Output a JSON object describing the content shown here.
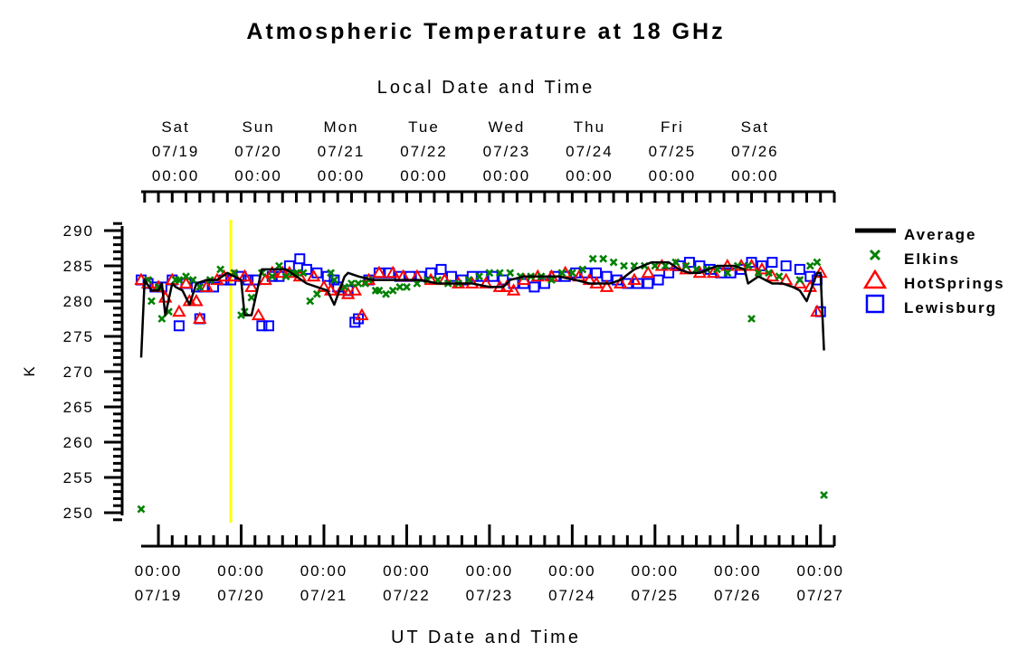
{
  "chart_data": {
    "type": "scatter",
    "title": "Atmospheric Temperature at 18 GHz",
    "top_axis_label": "Local Date and Time",
    "xlabel": "UT Date and Time",
    "ylabel": "K",
    "ylim": [
      249,
      290
    ],
    "xlim": [
      "07/18 19:00",
      "07/27 04:00"
    ],
    "yticks": [
      "250",
      "255",
      "260",
      "265",
      "270",
      "275",
      "280",
      "285",
      "290"
    ],
    "top_ticks": [
      {
        "day": "Sat",
        "date": "07/19",
        "time": "00:00"
      },
      {
        "day": "Sun",
        "date": "07/20",
        "time": "00:00"
      },
      {
        "day": "Mon",
        "date": "07/21",
        "time": "00:00"
      },
      {
        "day": "Tue",
        "date": "07/22",
        "time": "00:00"
      },
      {
        "day": "Wed",
        "date": "07/23",
        "time": "00:00"
      },
      {
        "day": "Thu",
        "date": "07/24",
        "time": "00:00"
      },
      {
        "day": "Fri",
        "date": "07/25",
        "time": "00:00"
      },
      {
        "day": "Sat",
        "date": "07/26",
        "time": "00:00"
      }
    ],
    "bottom_ticks": [
      {
        "time": "00:00",
        "date": "07/19"
      },
      {
        "time": "00:00",
        "date": "07/20"
      },
      {
        "time": "00:00",
        "date": "07/21"
      },
      {
        "time": "00:00",
        "date": "07/22"
      },
      {
        "time": "00:00",
        "date": "07/23"
      },
      {
        "time": "00:00",
        "date": "07/24"
      },
      {
        "time": "00:00",
        "date": "07/25"
      },
      {
        "time": "00:00",
        "date": "07/26"
      },
      {
        "time": "00:00",
        "date": "07/27"
      }
    ],
    "marker_line": {
      "x": "07/19 21:00",
      "color": "#ffff00"
    },
    "legend_position": "right",
    "series": [
      {
        "name": "Average",
        "kind": "line",
        "color": "#000000",
        "x": [
          "07/18 19:00",
          "07/18 20:00",
          "07/18 22:00",
          "07/19 00:00",
          "07/19 01:00",
          "07/19 02:00",
          "07/19 04:00",
          "07/19 05:00",
          "07/19 07:00",
          "07/19 09:00",
          "07/19 11:00",
          "07/19 14:00",
          "07/19 17:00",
          "07/19 20:00",
          "07/19 22:00",
          "07/20 00:00",
          "07/20 01:00",
          "07/20 03:00",
          "07/20 06:00",
          "07/20 08:00",
          "07/20 10:00",
          "07/20 13:00",
          "07/20 16:00",
          "07/20 19:00",
          "07/20 22:00",
          "07/21 01:00",
          "07/21 03:00",
          "07/21 06:00",
          "07/21 07:00",
          "07/21 10:00",
          "07/21 14:00",
          "07/21 18:00",
          "07/21 23:00",
          "07/22 04:00",
          "07/22 09:00",
          "07/22 14:00",
          "07/22 19:00",
          "07/23 00:00",
          "07/23 04:00",
          "07/23 06:00",
          "07/23 10:00",
          "07/23 15:00",
          "07/23 20:00",
          "07/24 01:00",
          "07/24 05:00",
          "07/24 08:00",
          "07/24 11:00",
          "07/24 14:00",
          "07/24 18:00",
          "07/24 23:00",
          "07/25 04:00",
          "07/25 07:00",
          "07/25 10:00",
          "07/25 13:00",
          "07/25 18:00",
          "07/25 23:00",
          "07/26 02:00",
          "07/26 03:00",
          "07/26 06:00",
          "07/26 08:00",
          "07/26 10:00",
          "07/26 13:00",
          "07/26 16:00",
          "07/26 18:00",
          "07/26 20:00",
          "07/26 23:00",
          "07/27 00:00",
          "07/27 01:00"
        ],
        "y": [
          272,
          283,
          281.5,
          281.5,
          282.5,
          278,
          282.5,
          282,
          281.5,
          279.5,
          282.5,
          283,
          283,
          284,
          283.5,
          283,
          278,
          278,
          284.5,
          284.5,
          284.5,
          284.5,
          283.5,
          282.5,
          282,
          281.5,
          279.5,
          283.5,
          284,
          283.5,
          283,
          283,
          283,
          283,
          282.5,
          282.5,
          282.5,
          282,
          282,
          283,
          283.5,
          283.5,
          283.5,
          283,
          282.5,
          282.5,
          282.5,
          283,
          284.5,
          285.5,
          285.5,
          284.5,
          284,
          284,
          285,
          285,
          284.5,
          282.5,
          283.5,
          283,
          282.5,
          282.5,
          282,
          281.5,
          280,
          284,
          284,
          273
        ]
      },
      {
        "name": "Elkins",
        "kind": "x",
        "color": "#008000",
        "x": [
          "07/18 19:00",
          "07/18 21:00",
          "07/18 22:00",
          "07/19 00:00",
          "07/19 01:00",
          "07/19 03:00",
          "07/19 05:00",
          "07/19 06:00",
          "07/19 08:00",
          "07/19 10:00",
          "07/19 12:00",
          "07/19 15:00",
          "07/19 18:00",
          "07/19 22:00",
          "07/20 00:00",
          "07/20 01:00",
          "07/20 03:00",
          "07/20 06:00",
          "07/20 09:00",
          "07/20 11:00",
          "07/20 13:00",
          "07/20 15:00",
          "07/20 16:00",
          "07/20 18:00",
          "07/20 20:00",
          "07/20 22:00",
          "07/21 02:00",
          "07/21 03:00",
          "07/21 06:00",
          "07/21 08:00",
          "07/21 10:00",
          "07/21 12:00",
          "07/21 13:00",
          "07/21 15:00",
          "07/21 16:00",
          "07/21 18:00",
          "07/21 20:00",
          "07/21 22:00",
          "07/22 00:00",
          "07/22 03:00",
          "07/22 06:00",
          "07/22 09:00",
          "07/22 12:00",
          "07/22 15:00",
          "07/22 18:00",
          "07/22 21:00",
          "07/23 00:00",
          "07/23 03:00",
          "07/23 06:00",
          "07/23 09:00",
          "07/23 12:00",
          "07/23 15:00",
          "07/23 18:00",
          "07/23 21:00",
          "07/24 00:00",
          "07/24 03:00",
          "07/24 06:00",
          "07/24 09:00",
          "07/24 12:00",
          "07/24 15:00",
          "07/24 18:00",
          "07/24 21:00",
          "07/25 00:00",
          "07/25 03:00",
          "07/25 06:00",
          "07/25 09:00",
          "07/25 12:00",
          "07/25 15:00",
          "07/25 18:00",
          "07/25 21:00",
          "07/26 00:00",
          "07/26 03:00",
          "07/26 04:00",
          "07/26 06:00",
          "07/26 09:00",
          "07/26 12:00",
          "07/26 18:00",
          "07/26 21:00",
          "07/26 23:00",
          "07/27 01:00"
        ],
        "y": [
          250.5,
          283,
          280,
          282,
          277.5,
          278.5,
          283,
          283,
          283.5,
          283,
          282,
          283,
          284.5,
          284,
          278,
          278.5,
          280.5,
          284,
          283.5,
          285,
          283.5,
          284,
          284,
          284,
          280,
          281,
          284,
          283,
          282,
          282.5,
          282.5,
          282.5,
          283,
          281.5,
          281.5,
          281,
          281.5,
          282,
          282,
          282.5,
          283,
          283,
          282.5,
          282.5,
          283,
          283.5,
          284,
          284,
          284,
          283.5,
          283.5,
          283.5,
          283,
          284,
          284,
          284.5,
          286,
          286,
          285.5,
          285,
          285,
          285,
          285,
          285,
          285.5,
          285,
          284.5,
          284.5,
          284.5,
          284,
          285,
          285,
          277.5,
          284,
          284,
          283.5,
          283,
          285,
          285.5,
          252.5
        ]
      },
      {
        "name": "HotSprings",
        "kind": "triangle",
        "color": "#ff0000",
        "x": [
          "07/18 19:00",
          "07/18 21:00",
          "07/19 00:00",
          "07/19 02:00",
          "07/19 04:00",
          "07/19 06:00",
          "07/19 08:00",
          "07/19 09:00",
          "07/19 11:00",
          "07/19 12:00",
          "07/19 14:00",
          "07/19 17:00",
          "07/19 19:00",
          "07/19 22:00",
          "07/20 01:00",
          "07/20 03:00",
          "07/20 05:00",
          "07/20 07:00",
          "07/20 09:00",
          "07/20 12:00",
          "07/20 14:00",
          "07/20 17:00",
          "07/20 21:00",
          "07/21 00:00",
          "07/21 02:00",
          "07/21 05:00",
          "07/21 07:00",
          "07/21 09:00",
          "07/21 11:00",
          "07/21 13:00",
          "07/21 16:00",
          "07/21 20:00",
          "07/21 23:00",
          "07/22 03:00",
          "07/22 07:00",
          "07/22 11:00",
          "07/22 15:00",
          "07/22 19:00",
          "07/22 23:00",
          "07/23 03:00",
          "07/23 05:00",
          "07/23 07:00",
          "07/23 10:00",
          "07/23 14:00",
          "07/23 18:00",
          "07/23 22:00",
          "07/24 02:00",
          "07/24 05:00",
          "07/24 07:00",
          "07/24 10:00",
          "07/24 14:00",
          "07/24 18:00",
          "07/24 22:00",
          "07/25 02:00",
          "07/25 06:00",
          "07/25 09:00",
          "07/25 13:00",
          "07/25 17:00",
          "07/25 21:00",
          "07/26 01:00",
          "07/26 04:00",
          "07/26 07:00",
          "07/26 10:00",
          "07/26 14:00",
          "07/26 18:00",
          "07/26 21:00",
          "07/26 23:00",
          "07/27 00:00"
        ],
        "y": [
          283,
          282.5,
          282,
          280.5,
          283,
          278.5,
          282.5,
          280,
          280,
          277.5,
          282,
          283,
          283.5,
          283.5,
          283.5,
          282,
          278,
          283,
          284,
          284,
          284,
          283.5,
          283.5,
          282,
          281.5,
          281.5,
          281,
          281.5,
          278,
          283,
          284,
          284,
          283.5,
          283.5,
          283,
          283,
          282.5,
          282.5,
          282.5,
          282,
          282,
          281.5,
          283,
          283.5,
          283.5,
          284,
          283.5,
          283,
          282.5,
          282,
          282.5,
          283,
          284,
          285,
          285,
          284.5,
          284,
          284,
          285,
          285,
          285,
          284.5,
          283.5,
          283,
          282.5,
          282,
          278.5,
          284
        ]
      },
      {
        "name": "Lewisburg",
        "kind": "square",
        "color": "#0000ff",
        "x": [
          "07/18 19:00",
          "07/18 21:00",
          "07/18 23:00",
          "07/19 01:00",
          "07/19 04:00",
          "07/19 06:00",
          "07/19 08:00",
          "07/19 11:00",
          "07/19 12:00",
          "07/19 13:00",
          "07/19 16:00",
          "07/19 19:00",
          "07/19 21:00",
          "07/20 00:00",
          "07/20 02:00",
          "07/20 04:00",
          "07/20 06:00",
          "07/20 08:00",
          "07/20 09:00",
          "07/20 11:00",
          "07/20 14:00",
          "07/20 17:00",
          "07/20 19:00",
          "07/20 22:00",
          "07/21 01:00",
          "07/21 03:00",
          "07/21 04:00",
          "07/21 07:00",
          "07/21 09:00",
          "07/21 10:00",
          "07/21 13:00",
          "07/21 16:00",
          "07/21 19:00",
          "07/21 22:00",
          "07/22 01:00",
          "07/22 04:00",
          "07/22 07:00",
          "07/22 10:00",
          "07/22 13:00",
          "07/22 16:00",
          "07/22 19:00",
          "07/22 22:00",
          "07/23 01:00",
          "07/23 04:00",
          "07/23 07:00",
          "07/23 10:00",
          "07/23 13:00",
          "07/23 16:00",
          "07/23 19:00",
          "07/23 22:00",
          "07/24 01:00",
          "07/24 04:00",
          "07/24 07:00",
          "07/24 10:00",
          "07/24 13:00",
          "07/24 16:00",
          "07/24 19:00",
          "07/24 22:00",
          "07/25 01:00",
          "07/25 04:00",
          "07/25 07:00",
          "07/25 10:00",
          "07/25 13:00",
          "07/25 16:00",
          "07/25 19:00",
          "07/25 22:00",
          "07/26 01:00",
          "07/26 04:00",
          "07/26 07:00",
          "07/26 10:00",
          "07/26 14:00",
          "07/26 18:00",
          "07/26 21:00",
          "07/26 23:00",
          "07/27 00:00"
        ],
        "y": [
          283,
          282.5,
          282,
          282,
          283,
          276.5,
          282.5,
          282,
          277.5,
          282,
          282,
          283,
          283,
          283.5,
          283,
          283,
          276.5,
          276.5,
          283.5,
          283.5,
          285,
          286,
          284.5,
          284,
          283.5,
          283,
          282,
          281.5,
          277,
          277.5,
          283,
          284,
          284,
          283.5,
          283.5,
          283.5,
          284,
          284.5,
          283.5,
          283,
          283.5,
          283.5,
          283.5,
          283,
          282.5,
          282.5,
          282,
          282.5,
          283.5,
          283.5,
          284,
          284,
          284,
          283.5,
          283,
          282.5,
          282.5,
          282.5,
          283,
          284,
          285,
          285.5,
          285,
          284.5,
          284,
          284,
          284.5,
          285.5,
          285,
          285.5,
          285,
          284.5,
          283.5,
          283,
          278.5
        ]
      }
    ]
  }
}
